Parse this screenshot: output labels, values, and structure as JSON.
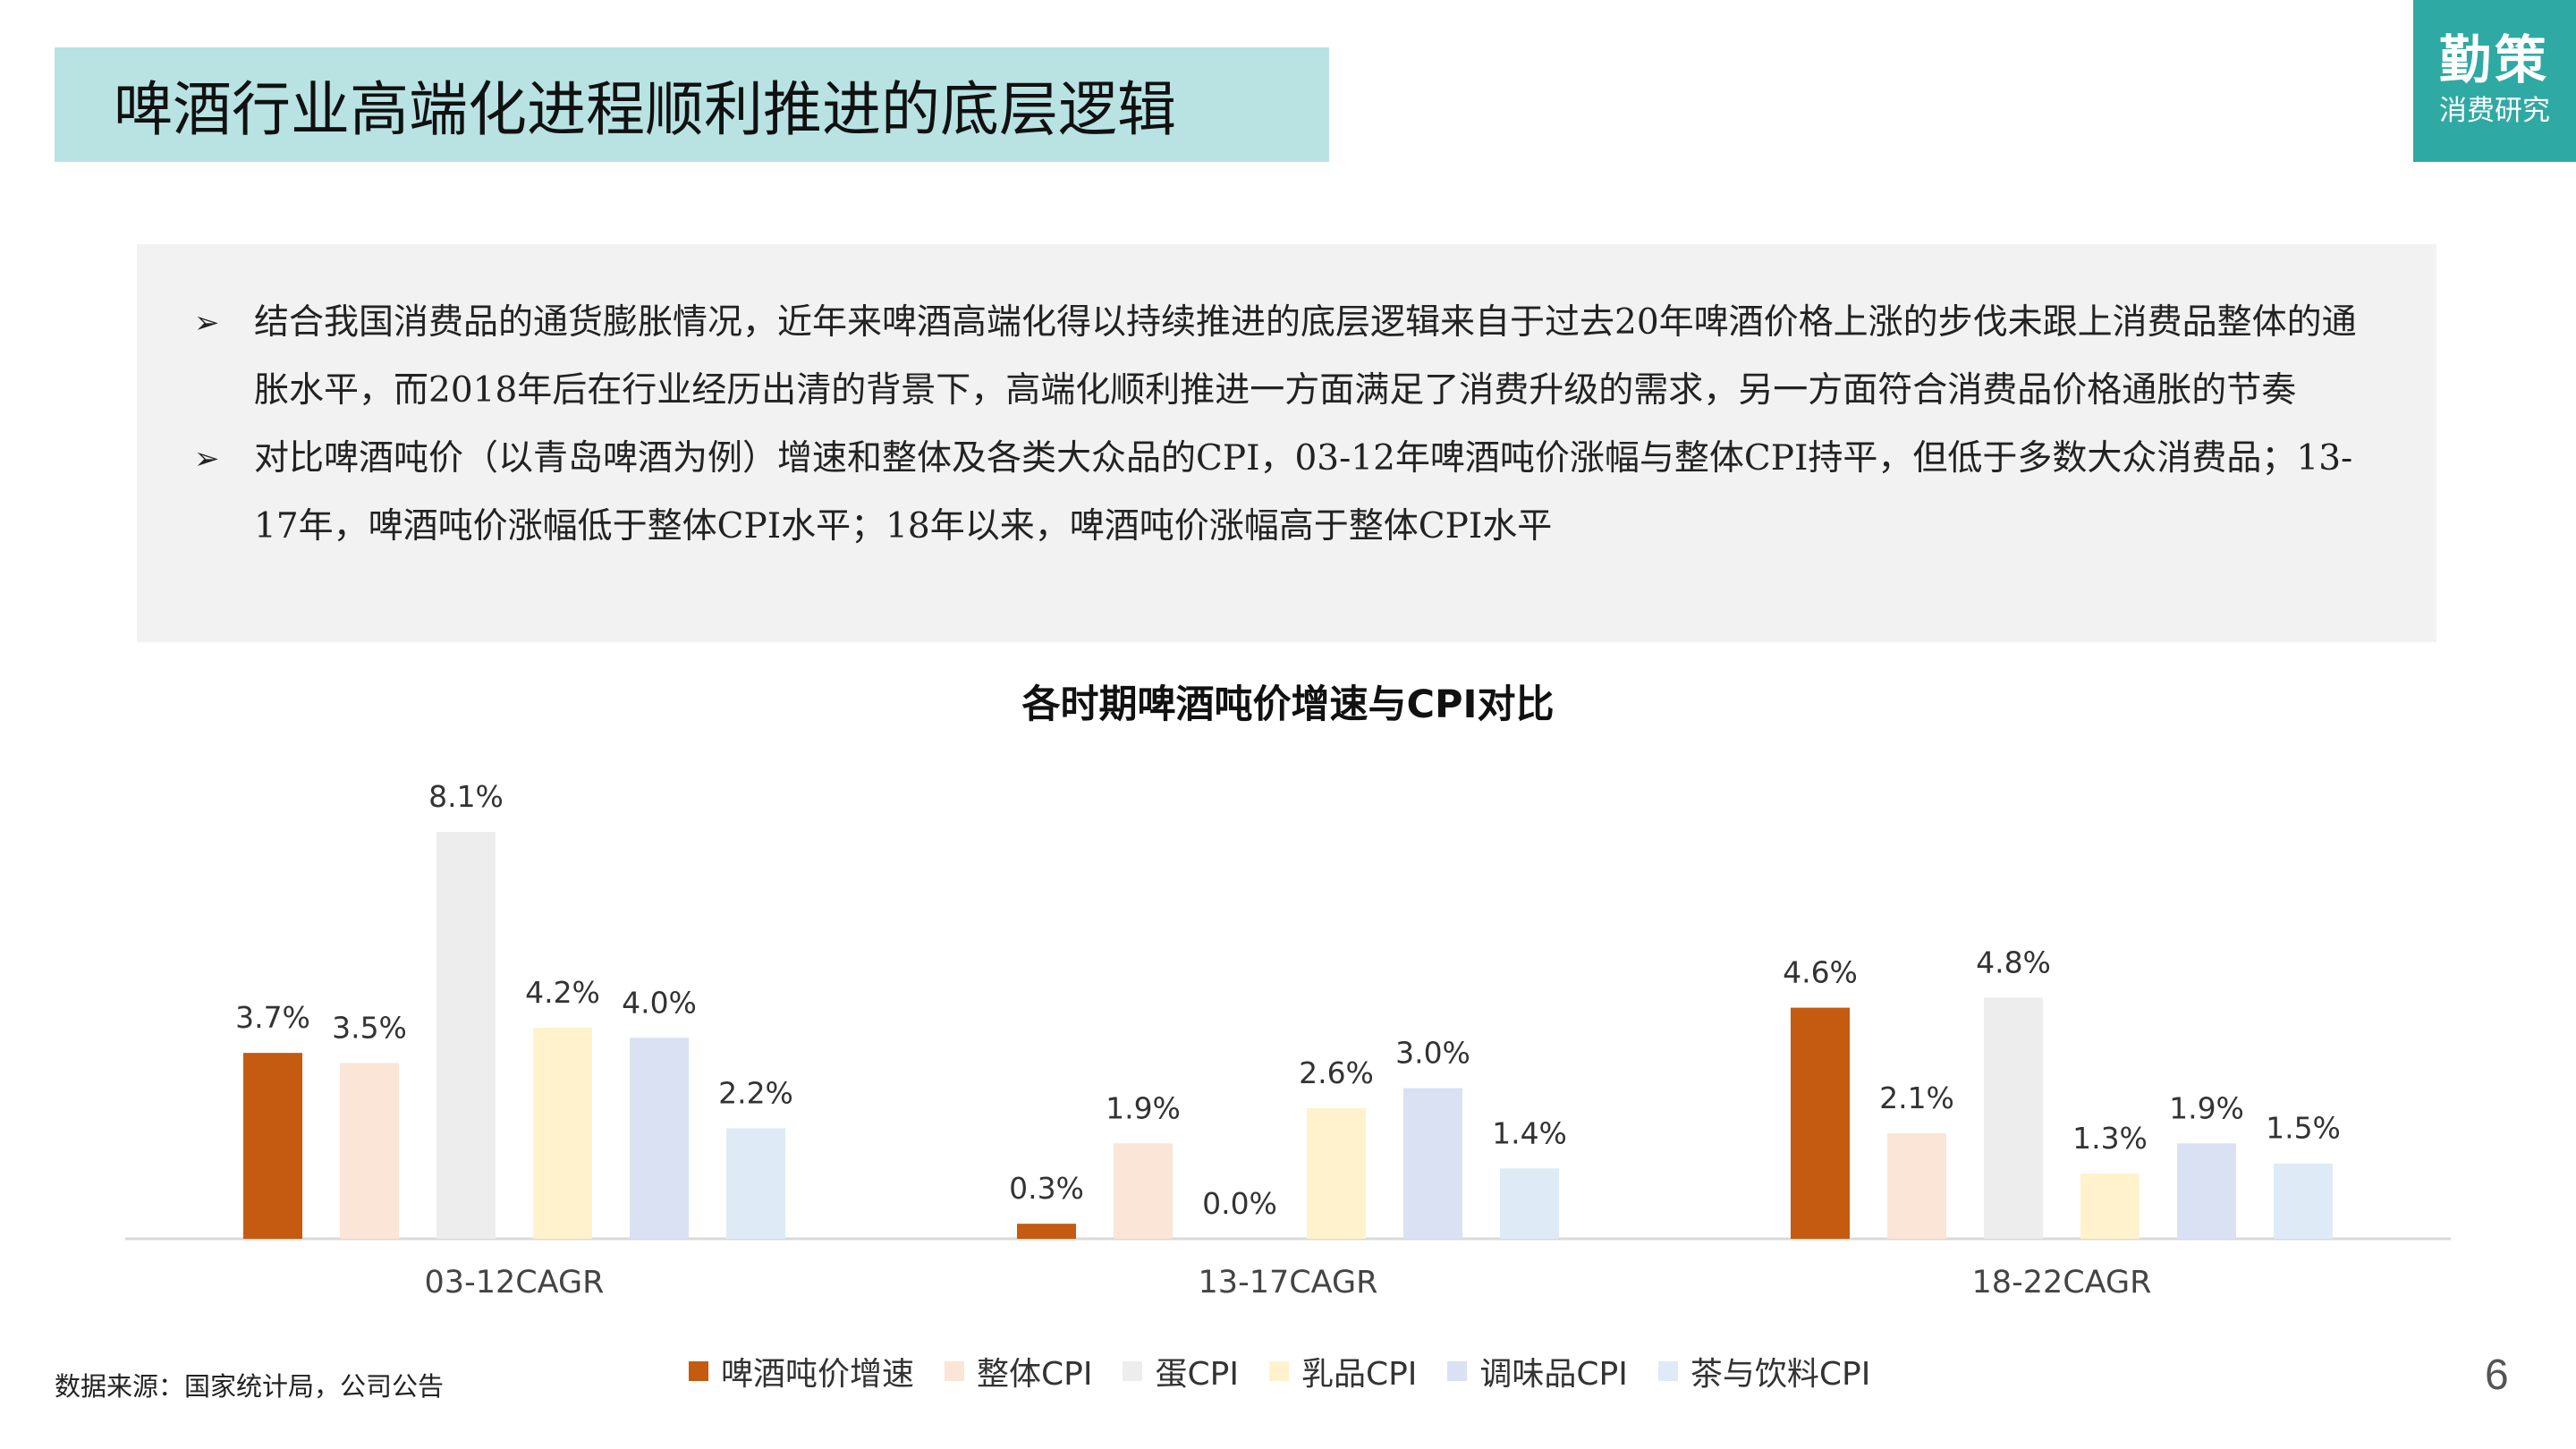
{
  "header": {
    "title": "啤酒行业高端化进程顺利推进的底层逻辑",
    "logo_main": "勤策",
    "logo_sub": "消费研究"
  },
  "summary": {
    "bullets": [
      {
        "mark": "➢",
        "text": "结合我国消费品的通货膨胀情况，近年来啤酒高端化得以持续推进的底层逻辑来自于过去20年啤酒价格上涨的步伐未跟上消费品整体的通胀水平，而2018年后在行业经历出清的背景下，高端化顺利推进一方面满足了消费升级的需求，另一方面符合消费品价格通胀的节奏"
      },
      {
        "mark": "➢",
        "text": "对比啤酒吨价（以青岛啤酒为例）增速和整体及各类大众品的CPI，03-12年啤酒吨价涨幅与整体CPI持平，但低于多数大众消费品；13-17年，啤酒吨价涨幅低于整体CPI水平；18年以来，啤酒吨价涨幅高于整体CPI水平"
      }
    ]
  },
  "chart_data": {
    "type": "bar",
    "title": "各时期啤酒吨价增速与CPI对比",
    "categories": [
      "03-12CAGR",
      "13-17CAGR",
      "18-22CAGR"
    ],
    "series": [
      {
        "name": "啤酒吨价增速",
        "color": "#c55a11",
        "values": [
          3.7,
          0.3,
          4.6
        ],
        "labels": [
          "3.7%",
          "0.3%",
          "4.6%"
        ]
      },
      {
        "name": "整体CPI",
        "color": "#fbe5d6",
        "values": [
          3.5,
          1.9,
          2.1
        ],
        "labels": [
          "3.5%",
          "1.9%",
          "2.1%"
        ]
      },
      {
        "name": "蛋CPI",
        "color": "#ededed",
        "values": [
          8.1,
          0.0,
          4.8
        ],
        "labels": [
          "8.1%",
          "0.0%",
          "4.8%"
        ]
      },
      {
        "name": "乳品CPI",
        "color": "#fff2cc",
        "values": [
          4.2,
          2.6,
          1.3
        ],
        "labels": [
          "4.2%",
          "2.6%",
          "1.3%"
        ]
      },
      {
        "name": "调味品CPI",
        "color": "#d9e1f2",
        "values": [
          4.0,
          3.0,
          1.9
        ],
        "labels": [
          "4.0%",
          "3.0%",
          "1.9%"
        ]
      },
      {
        "name": "茶与饮料CPI",
        "color": "#deebf7",
        "values": [
          2.2,
          1.4,
          1.5
        ],
        "labels": [
          "2.2%",
          "1.4%",
          "1.5%"
        ]
      }
    ],
    "ylim": [
      0,
      8.1
    ],
    "grid": false,
    "legend": "bottom"
  },
  "footer": {
    "source": "数据来源：国家统计局，公司公告",
    "page_number": "6"
  }
}
